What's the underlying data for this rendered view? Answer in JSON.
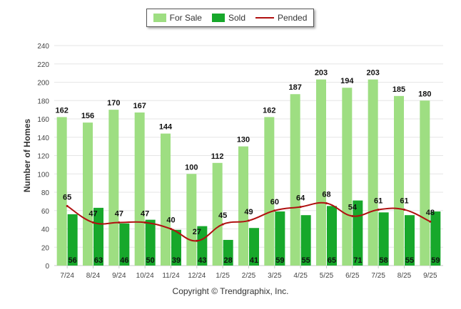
{
  "legend": {
    "for_sale": "For Sale",
    "sold": "Sold",
    "pended": "Pended"
  },
  "footer": "Copyright © Trendgraphix, Inc.",
  "colors": {
    "for_sale": "#9ede82",
    "sold": "#17a82b",
    "pended": "#b01010",
    "grid": "#e6e6e6"
  },
  "chart_data": {
    "type": "bar",
    "ylabel": "Number of Homes",
    "ylim": [
      0,
      240
    ],
    "yticks": [
      0,
      20,
      40,
      60,
      80,
      100,
      120,
      140,
      160,
      180,
      200,
      220,
      240
    ],
    "categories": [
      "7/24",
      "8/24",
      "9/24",
      "10/24",
      "11/24",
      "12/24",
      "1/25",
      "2/25",
      "3/25",
      "4/25",
      "5/25",
      "6/25",
      "7/25",
      "8/25",
      "9/25"
    ],
    "series": [
      {
        "name": "For Sale",
        "kind": "bar",
        "values": [
          162,
          156,
          170,
          167,
          144,
          100,
          112,
          130,
          162,
          187,
          203,
          194,
          203,
          185,
          180
        ]
      },
      {
        "name": "Sold",
        "kind": "bar",
        "values": [
          56,
          63,
          46,
          50,
          39,
          43,
          28,
          41,
          59,
          55,
          65,
          71,
          58,
          55,
          59
        ]
      },
      {
        "name": "Pended",
        "kind": "line",
        "values": [
          65,
          47,
          47,
          47,
          40,
          27,
          45,
          49,
          60,
          64,
          68,
          54,
          61,
          61,
          48
        ]
      }
    ],
    "grid": true,
    "legend_position": "top-center"
  }
}
